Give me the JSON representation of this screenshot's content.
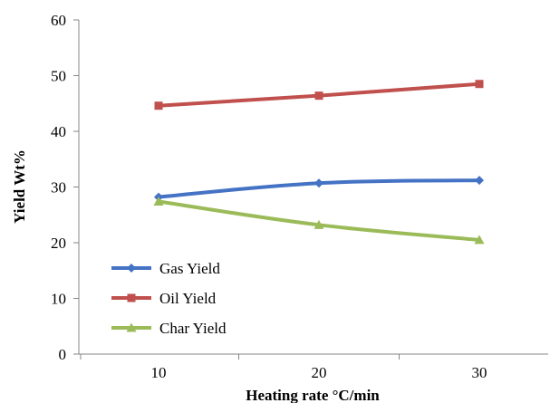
{
  "chart_data": {
    "type": "line",
    "x": [
      10,
      20,
      30
    ],
    "series": [
      {
        "name": "Gas Yield",
        "values": [
          28.2,
          30.7,
          31.2
        ],
        "color": "#4472c4",
        "marker": "diamond"
      },
      {
        "name": "Oil Yield",
        "values": [
          44.6,
          46.4,
          48.5
        ],
        "color": "#c0504d",
        "marker": "square"
      },
      {
        "name": "Char Yield",
        "values": [
          27.4,
          23.2,
          20.5
        ],
        "color": "#9bbb59",
        "marker": "triangle"
      }
    ],
    "xlabel": "Heating rate °C/min",
    "ylabel": "Yield Wt%",
    "ylim": [
      0,
      60
    ],
    "yticks": [
      0,
      10,
      20,
      30,
      40,
      50,
      60
    ],
    "xticks": [
      10,
      20,
      30
    ],
    "grid": false,
    "legend_position": "bottom-left"
  }
}
